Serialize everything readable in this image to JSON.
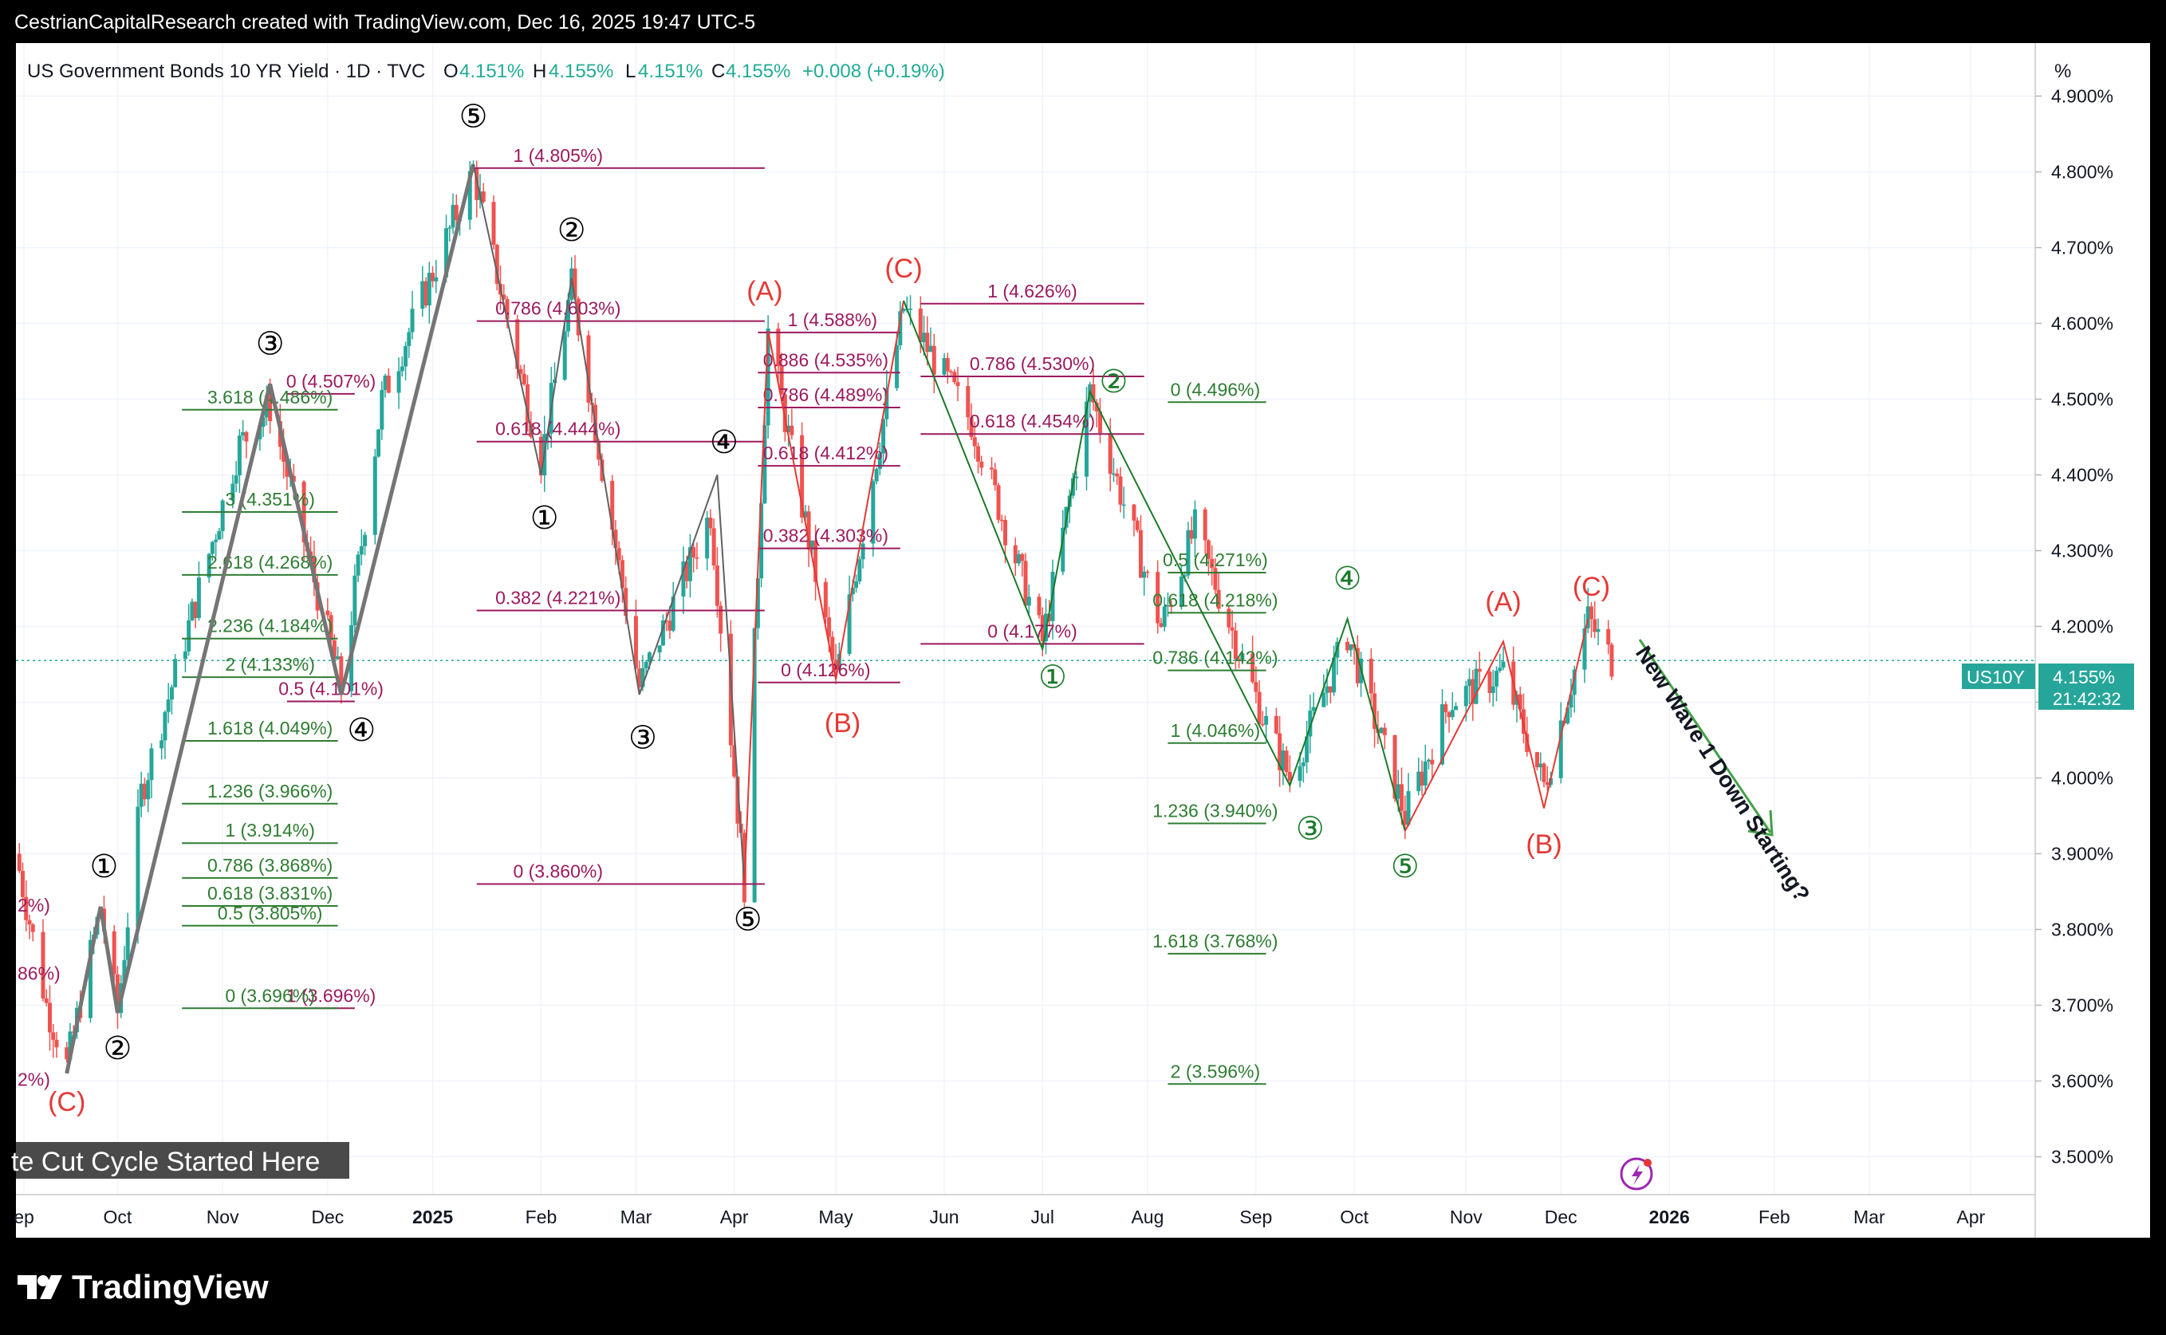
{
  "header": {
    "attribution": "CestrianCapitalResearch created with TradingView.com, Dec 16, 2025 19:47 UTC-5"
  },
  "legend": {
    "symbol_title": "US Government Bonds 10 YR Yield · 1D · TVC",
    "o_label": "O",
    "o_value": "4.151%",
    "h_label": "H",
    "h_value": "4.155%",
    "l_label": "L",
    "l_value": "4.151%",
    "c_label": "C",
    "c_value": "4.155%",
    "change": "+0.008 (+0.19%)"
  },
  "price_scale": {
    "unit": "%",
    "ticks": [
      "4.900%",
      "4.800%",
      "4.700%",
      "4.600%",
      "4.500%",
      "4.400%",
      "4.300%",
      "4.200%",
      "4.100%",
      "4.000%",
      "3.900%",
      "3.800%",
      "3.700%",
      "3.600%",
      "3.500%"
    ],
    "last_symbol": "US10Y",
    "last_value": "4.155%",
    "countdown": "21:42:32"
  },
  "time_axis": {
    "labels": [
      "ep",
      "Oct",
      "Nov",
      "Dec",
      "2025",
      "Feb",
      "Mar",
      "Apr",
      "May",
      "Jun",
      "Jul",
      "Aug",
      "Sep",
      "Oct",
      "Nov",
      "Dec",
      "2026",
      "Feb",
      "Mar",
      "Apr"
    ]
  },
  "banner": {
    "text": "te Cut Cycle Started Here"
  },
  "footer": {
    "logo_text": "TradingView"
  },
  "colors": {
    "up": "#26a69a",
    "down": "#ef5350",
    "fib_red": "#9c1a5e",
    "fib_green": "#2e7d32",
    "wave_black": "#000000",
    "wave_green": "#1b7a2a",
    "wave_red": "#e53935",
    "zigzag_gray": "#757575"
  },
  "chart_data": {
    "type": "line",
    "title": "US Government Bonds 10 YR Yield · 1D · TVC",
    "ylim": [
      3.45,
      4.97
    ],
    "yaxis_unit": "%",
    "x_range": [
      "2024-09-01",
      "2026-04-20"
    ],
    "grid": true,
    "last_price": 4.155,
    "series": [
      {
        "values": [
          [
            "2024-09-01",
            3.9
          ],
          [
            "2024-09-10",
            3.7
          ],
          [
            "2024-09-16",
            3.62
          ],
          [
            "2024-09-26",
            3.83
          ],
          [
            "2024-10-01",
            3.69
          ],
          [
            "2024-10-08",
            3.98
          ],
          [
            "2024-10-22",
            4.2
          ],
          [
            "2024-11-06",
            4.44
          ],
          [
            "2024-11-15",
            4.49
          ],
          [
            "2024-12-06",
            4.12
          ],
          [
            "2024-12-18",
            4.5
          ],
          [
            "2025-01-14",
            4.8
          ],
          [
            "2025-01-28",
            4.53
          ],
          [
            "2025-02-03",
            4.42
          ],
          [
            "2025-02-12",
            4.65
          ],
          [
            "2025-03-04",
            4.12
          ],
          [
            "2025-03-25",
            4.35
          ],
          [
            "2025-04-04",
            3.86
          ],
          [
            "2025-04-11",
            4.59
          ],
          [
            "2025-05-01",
            4.13
          ],
          [
            "2025-05-21",
            4.62
          ],
          [
            "2025-06-10",
            4.47
          ],
          [
            "2025-07-01",
            4.18
          ],
          [
            "2025-07-15",
            4.51
          ],
          [
            "2025-08-05",
            4.2
          ],
          [
            "2025-08-15",
            4.33
          ],
          [
            "2025-09-05",
            4.07
          ],
          [
            "2025-09-12",
            4.0
          ],
          [
            "2025-09-29",
            4.19
          ],
          [
            "2025-10-16",
            3.95
          ],
          [
            "2025-10-29",
            4.1
          ],
          [
            "2025-11-14",
            4.14
          ],
          [
            "2025-11-26",
            3.99
          ],
          [
            "2025-12-09",
            4.21
          ],
          [
            "2025-12-16",
            4.155
          ]
        ]
      }
    ],
    "fib_levels": {
      "red": [
        "1 (4.805%)",
        "0.786 (4.603%)",
        "0.618 (4.444%)",
        "0.382 (4.221%)",
        "0 (3.860%)",
        "1 (3.696%)",
        "0.5 (4.101%)",
        "0 (4.507%)",
        "1 (4.588%)",
        "0.886 (4.535%)",
        "0.786 (4.489%)",
        "0.618 (4.412%)",
        "0.382 (4.303%)",
        "0 (4.126%)",
        "1 (4.626%)",
        "0.786 (4.530%)",
        "0.618 (4.454%)",
        "0 (4.177%)"
      ],
      "green": [
        "3.618 (4.486%)",
        "3 (4.351%)",
        "2.618 (4.268%)",
        "2.236 (4.184%)",
        "2 (4.133%)",
        "1.618 (4.049%)",
        "1.236 (3.966%)",
        "1 (3.914%)",
        "0.786 (3.868%)",
        "0.618 (3.831%)",
        "0.5 (3.805%)",
        "0 (3.696%)",
        "0 (4.496%)",
        "0.5 (4.271%)",
        "0.618 (4.218%)",
        "0.786 (4.142%)",
        "1 (4.046%)",
        "1.236 (3.940%)",
        "1.618 (3.768%)",
        "2 (3.596%)"
      ]
    },
    "wave_labels": {
      "black": [
        "①",
        "②",
        "③",
        "④",
        "⑤",
        "②",
        "①",
        "③",
        "④",
        "⑤"
      ],
      "green": [
        "②",
        "①",
        "④",
        "③",
        "⑤"
      ],
      "red": [
        "(C)",
        "(A)",
        "(C)",
        "(B)",
        "(A)",
        "(C)",
        "(B)"
      ],
      "left_cutoff": [
        "2%)",
        "86%)",
        "2%)"
      ]
    },
    "annotation": "New Wave 1 Down Starting?"
  }
}
